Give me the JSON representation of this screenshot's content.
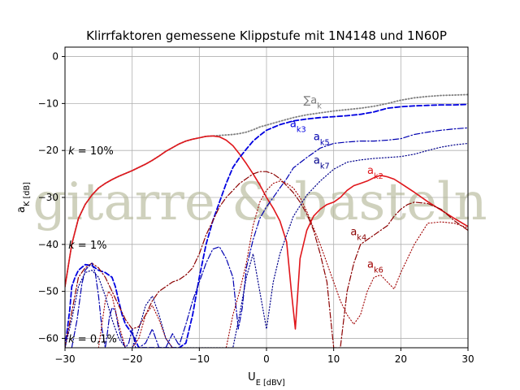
{
  "chart_data": {
    "type": "line",
    "title": "Klirrfaktoren gemessene Klippstufe mit 1N4148 und 1N60P",
    "xlabel": "U_E [dBV]",
    "ylabel": "a_K [dB]",
    "xlim": [
      -30,
      30
    ],
    "ylim": [
      -62,
      2
    ],
    "xticks": [
      -30,
      -20,
      -10,
      0,
      10,
      20,
      30
    ],
    "yticks": [
      0,
      -10,
      -20,
      -30,
      -40,
      -50,
      -60
    ],
    "grid": true,
    "watermark": "gitarre & basteln",
    "annotations": [
      {
        "text": "k = 10%",
        "x": -29.5,
        "y": -20
      },
      {
        "text": "k = 1%",
        "x": -29.5,
        "y": -40
      },
      {
        "text": "k = 0,1%",
        "x": -29.5,
        "y": -60
      }
    ],
    "series": [
      {
        "name": "∑a_k",
        "color": "#808080",
        "style": "dotted",
        "width": 1.8,
        "x": [
          -30,
          -29,
          -28,
          -27,
          -26,
          -25,
          -24,
          -23,
          -22,
          -21,
          -20,
          -19,
          -18,
          -17,
          -16,
          -15,
          -14,
          -13,
          -12,
          -11,
          -10,
          -9,
          -8,
          -7,
          -6,
          -5,
          -4,
          -3,
          -2,
          -1,
          0,
          2,
          4,
          6,
          8,
          10,
          12,
          14,
          16,
          18,
          20,
          22,
          24,
          26,
          28,
          30
        ],
        "y": [
          -49,
          -40,
          -34.5,
          -31.5,
          -29.5,
          -28,
          -27,
          -26.2,
          -25.5,
          -24.9,
          -24.3,
          -23.6,
          -22.9,
          -22.1,
          -21.2,
          -20.2,
          -19.4,
          -18.6,
          -18,
          -17.6,
          -17.3,
          -17,
          -16.9,
          -16.8,
          -16.7,
          -16.6,
          -16.4,
          -16.1,
          -15.6,
          -15,
          -14.6,
          -13.8,
          -13,
          -12.4,
          -12,
          -11.6,
          -11.3,
          -11,
          -10.6,
          -10,
          -9.3,
          -8.8,
          -8.5,
          -8.3,
          -8.2,
          -8.1
        ],
        "label": {
          "text": "∑a_k",
          "x": 5.5,
          "y": -10
        }
      },
      {
        "name": "a_k2",
        "color": "#e0161b",
        "style": "solid",
        "width": 1.6,
        "x": [
          -30,
          -29,
          -28,
          -27,
          -26,
          -25,
          -24,
          -23,
          -22,
          -21,
          -20,
          -19,
          -18,
          -17,
          -16,
          -15,
          -14,
          -13,
          -12,
          -11,
          -10,
          -9,
          -8,
          -7,
          -6,
          -5,
          -4,
          -3,
          -2,
          -1,
          0,
          1,
          2,
          3,
          3.7,
          4.3,
          5,
          6,
          7,
          8,
          9,
          10,
          11,
          12,
          13,
          14,
          15,
          16,
          17,
          18,
          19,
          20,
          22,
          24,
          26,
          28,
          30
        ],
        "y": [
          -49,
          -40,
          -34.5,
          -31.5,
          -29.5,
          -28,
          -27,
          -26.2,
          -25.5,
          -24.9,
          -24.3,
          -23.6,
          -22.9,
          -22.1,
          -21.2,
          -20.2,
          -19.4,
          -18.6,
          -18,
          -17.6,
          -17.3,
          -17,
          -16.9,
          -17.1,
          -17.8,
          -19,
          -20.8,
          -22.8,
          -25,
          -27.3,
          -30,
          -32.3,
          -35,
          -39.5,
          -50,
          -58,
          -43,
          -37,
          -34,
          -32.5,
          -31.5,
          -31,
          -30,
          -28.5,
          -27.5,
          -27,
          -26.5,
          -25.8,
          -25.3,
          -25.6,
          -26.1,
          -27,
          -28.9,
          -30.9,
          -32.7,
          -34.5,
          -36.2
        ],
        "label": {
          "text": "a_k2",
          "x": 15,
          "y": -25
        }
      },
      {
        "name": "a_k3",
        "color": "#0000e0",
        "style": "dashed",
        "width": 1.8,
        "x": [
          -30,
          -29.3,
          -29,
          -28.5,
          -28,
          -27,
          -26,
          -25,
          -24,
          -23,
          -22.5,
          -22,
          -21.5,
          -21,
          -20,
          -19,
          -18,
          -17,
          -16,
          -15,
          -14,
          -13,
          -12,
          -11,
          -10,
          -9,
          -8,
          -7,
          -6,
          -5,
          -4,
          -3,
          -2,
          -1,
          0,
          2,
          4,
          6,
          8,
          10,
          12,
          14,
          16,
          18,
          20,
          22,
          24,
          26,
          28,
          30
        ],
        "y": [
          -62,
          -54,
          -49,
          -47,
          -45.5,
          -44.3,
          -44.5,
          -45.5,
          -46,
          -47,
          -49,
          -52,
          -55,
          -57,
          -59,
          -62,
          -62,
          -62,
          -62,
          -62,
          -62,
          -62,
          -61,
          -55,
          -47,
          -40,
          -35,
          -31,
          -27,
          -23.6,
          -21.5,
          -19.7,
          -18,
          -16.8,
          -15.7,
          -14.5,
          -13.7,
          -13.3,
          -13,
          -12.8,
          -12.6,
          -12.3,
          -11.8,
          -11,
          -10.7,
          -10.5,
          -10.4,
          -10.3,
          -10.3,
          -10.2
        ],
        "label": {
          "text": "a_k3",
          "x": 3.5,
          "y": -15
        }
      },
      {
        "name": "a_k4",
        "color": "#8b0000",
        "style": "dashdot",
        "width": 1.2,
        "x": [
          -30,
          -28,
          -27,
          -26,
          -25,
          -24,
          -23,
          -22,
          -21,
          -20,
          -19,
          -18,
          -17,
          -16,
          -15,
          -14,
          -13,
          -12,
          -11,
          -10,
          -9,
          -8,
          -7,
          -6,
          -5,
          -4,
          -3,
          -2,
          -1,
          0,
          1,
          2,
          3,
          4,
          5,
          6,
          7,
          8,
          9,
          9.5,
          10,
          11,
          12,
          13,
          14,
          15,
          16,
          17,
          18,
          19,
          20,
          21,
          22,
          24,
          26,
          28,
          30
        ],
        "y": [
          -62,
          -47,
          -45,
          -44,
          -45,
          -47,
          -50,
          -53,
          -56,
          -58,
          -57.5,
          -55,
          -52,
          -50,
          -49,
          -48,
          -47.5,
          -46.5,
          -45,
          -42,
          -38,
          -35,
          -32,
          -30,
          -28.5,
          -27,
          -26,
          -25,
          -24.5,
          -24.5,
          -25,
          -26,
          -27.5,
          -29,
          -31,
          -33.5,
          -37,
          -42,
          -48,
          -55,
          -62,
          -62,
          -50,
          -44,
          -40,
          -39,
          -38,
          -37,
          -36,
          -34,
          -32.5,
          -31.5,
          -31,
          -31.3,
          -32.5,
          -35,
          -37
        ],
        "label": {
          "text": "a_k4",
          "x": 12.5,
          "y": -38
        }
      },
      {
        "name": "a_k5",
        "color": "#0000b0",
        "style": "dashdot",
        "width": 1.2,
        "x": [
          -29,
          -28.2,
          -27.5,
          -27,
          -26,
          -25.5,
          -25,
          -24.5,
          -24,
          -23.8,
          -23.4,
          -23,
          -22.5,
          -22,
          -21.6,
          -21,
          -20.5,
          -20,
          -19.5,
          -19,
          -18,
          -17,
          -16,
          -15,
          -14,
          -13,
          -12,
          -11,
          -10,
          -9,
          -8,
          -7,
          -6,
          -5,
          -4.2,
          -3.6,
          -3,
          -2,
          -1,
          0,
          1,
          2,
          3,
          4,
          6,
          8,
          10,
          12,
          14,
          16,
          18,
          20,
          22,
          24,
          26,
          28,
          30
        ],
        "y": [
          -62,
          -56,
          -48.5,
          -45.5,
          -44,
          -46,
          -51,
          -58,
          -62,
          -60,
          -55.5,
          -53.5,
          -54,
          -58,
          -60,
          -62,
          -61,
          -58,
          -62,
          -62,
          -61,
          -58,
          -62,
          -62,
          -59,
          -61.5,
          -57,
          -52,
          -48,
          -44,
          -41,
          -40.5,
          -43,
          -47,
          -58,
          -53.5,
          -45,
          -39,
          -34.5,
          -32,
          -30,
          -28,
          -26,
          -23.7,
          -21.5,
          -19.5,
          -18.5,
          -18.2,
          -18,
          -18,
          -17.8,
          -17.5,
          -16.6,
          -16.1,
          -15.7,
          -15.4,
          -15.2
        ],
        "label": {
          "text": "a_k5",
          "x": 7,
          "y": -17.8
        }
      },
      {
        "name": "a_k6",
        "color": "#a00000",
        "style": "dotted",
        "width": 1.1,
        "x": [
          -25,
          -24,
          -23.5,
          -23,
          -22,
          -21,
          -20,
          -19,
          -18,
          -17,
          -16,
          -15,
          -14,
          -13,
          -12,
          -11,
          -10,
          -9,
          -8,
          -7,
          -6,
          -5,
          -4,
          -3,
          -2,
          -1,
          0,
          1,
          2,
          3,
          4,
          5,
          6,
          7,
          8,
          9,
          9.5,
          10,
          10.5,
          11,
          12,
          13,
          14,
          15,
          16,
          17,
          18,
          19,
          20,
          22,
          24,
          26,
          28,
          30
        ],
        "y": [
          -62,
          -52,
          -50,
          -51,
          -57,
          -62,
          -62,
          -60,
          -55,
          -53,
          -56,
          -60,
          -62,
          -62,
          -62,
          -62,
          -62,
          -62,
          -62,
          -62,
          -62,
          -55,
          -50,
          -44,
          -36,
          -31,
          -28.5,
          -27,
          -26.5,
          -27,
          -28,
          -30,
          -33,
          -36.5,
          -40,
          -44,
          -46,
          -48,
          -50,
          -52,
          -55,
          -57,
          -55,
          -50,
          -47,
          -46.5,
          -48,
          -49.5,
          -46,
          -40,
          -35.5,
          -35.2,
          -35.5,
          -36.5
        ],
        "label": {
          "text": "a_k6",
          "x": 15,
          "y": -45
        }
      },
      {
        "name": "a_k7",
        "color": "#00008b",
        "style": "dotted",
        "width": 1.2,
        "x": [
          -30,
          -29,
          -28,
          -27,
          -26,
          -25,
          -24,
          -23,
          -22,
          -21,
          -20,
          -19,
          -18,
          -17,
          -16,
          -15,
          -14,
          -13,
          -12,
          -11,
          -10,
          -9,
          -8,
          -7,
          -6,
          -5,
          -4,
          -3,
          -2,
          -1,
          0,
          1,
          2,
          3,
          4,
          6,
          8,
          10,
          12,
          14,
          16,
          18,
          20,
          22,
          24,
          26,
          28,
          30
        ],
        "y": [
          -62,
          -56,
          -49,
          -46,
          -45.5,
          -47,
          -51,
          -56,
          -60,
          -62,
          -62,
          -58,
          -53,
          -51,
          -55,
          -60,
          -62,
          -62,
          -62,
          -62,
          -62,
          -62,
          -62,
          -62,
          -62,
          -62,
          -55,
          -47,
          -42,
          -50,
          -58,
          -48,
          -42,
          -38,
          -34,
          -29.5,
          -26.5,
          -24,
          -22.5,
          -22,
          -21.7,
          -21.5,
          -21.3,
          -20.8,
          -20,
          -19.3,
          -18.8,
          -18.5
        ],
        "label": {
          "text": "a_k7",
          "x": 7,
          "y": -22.8
        }
      }
    ]
  }
}
